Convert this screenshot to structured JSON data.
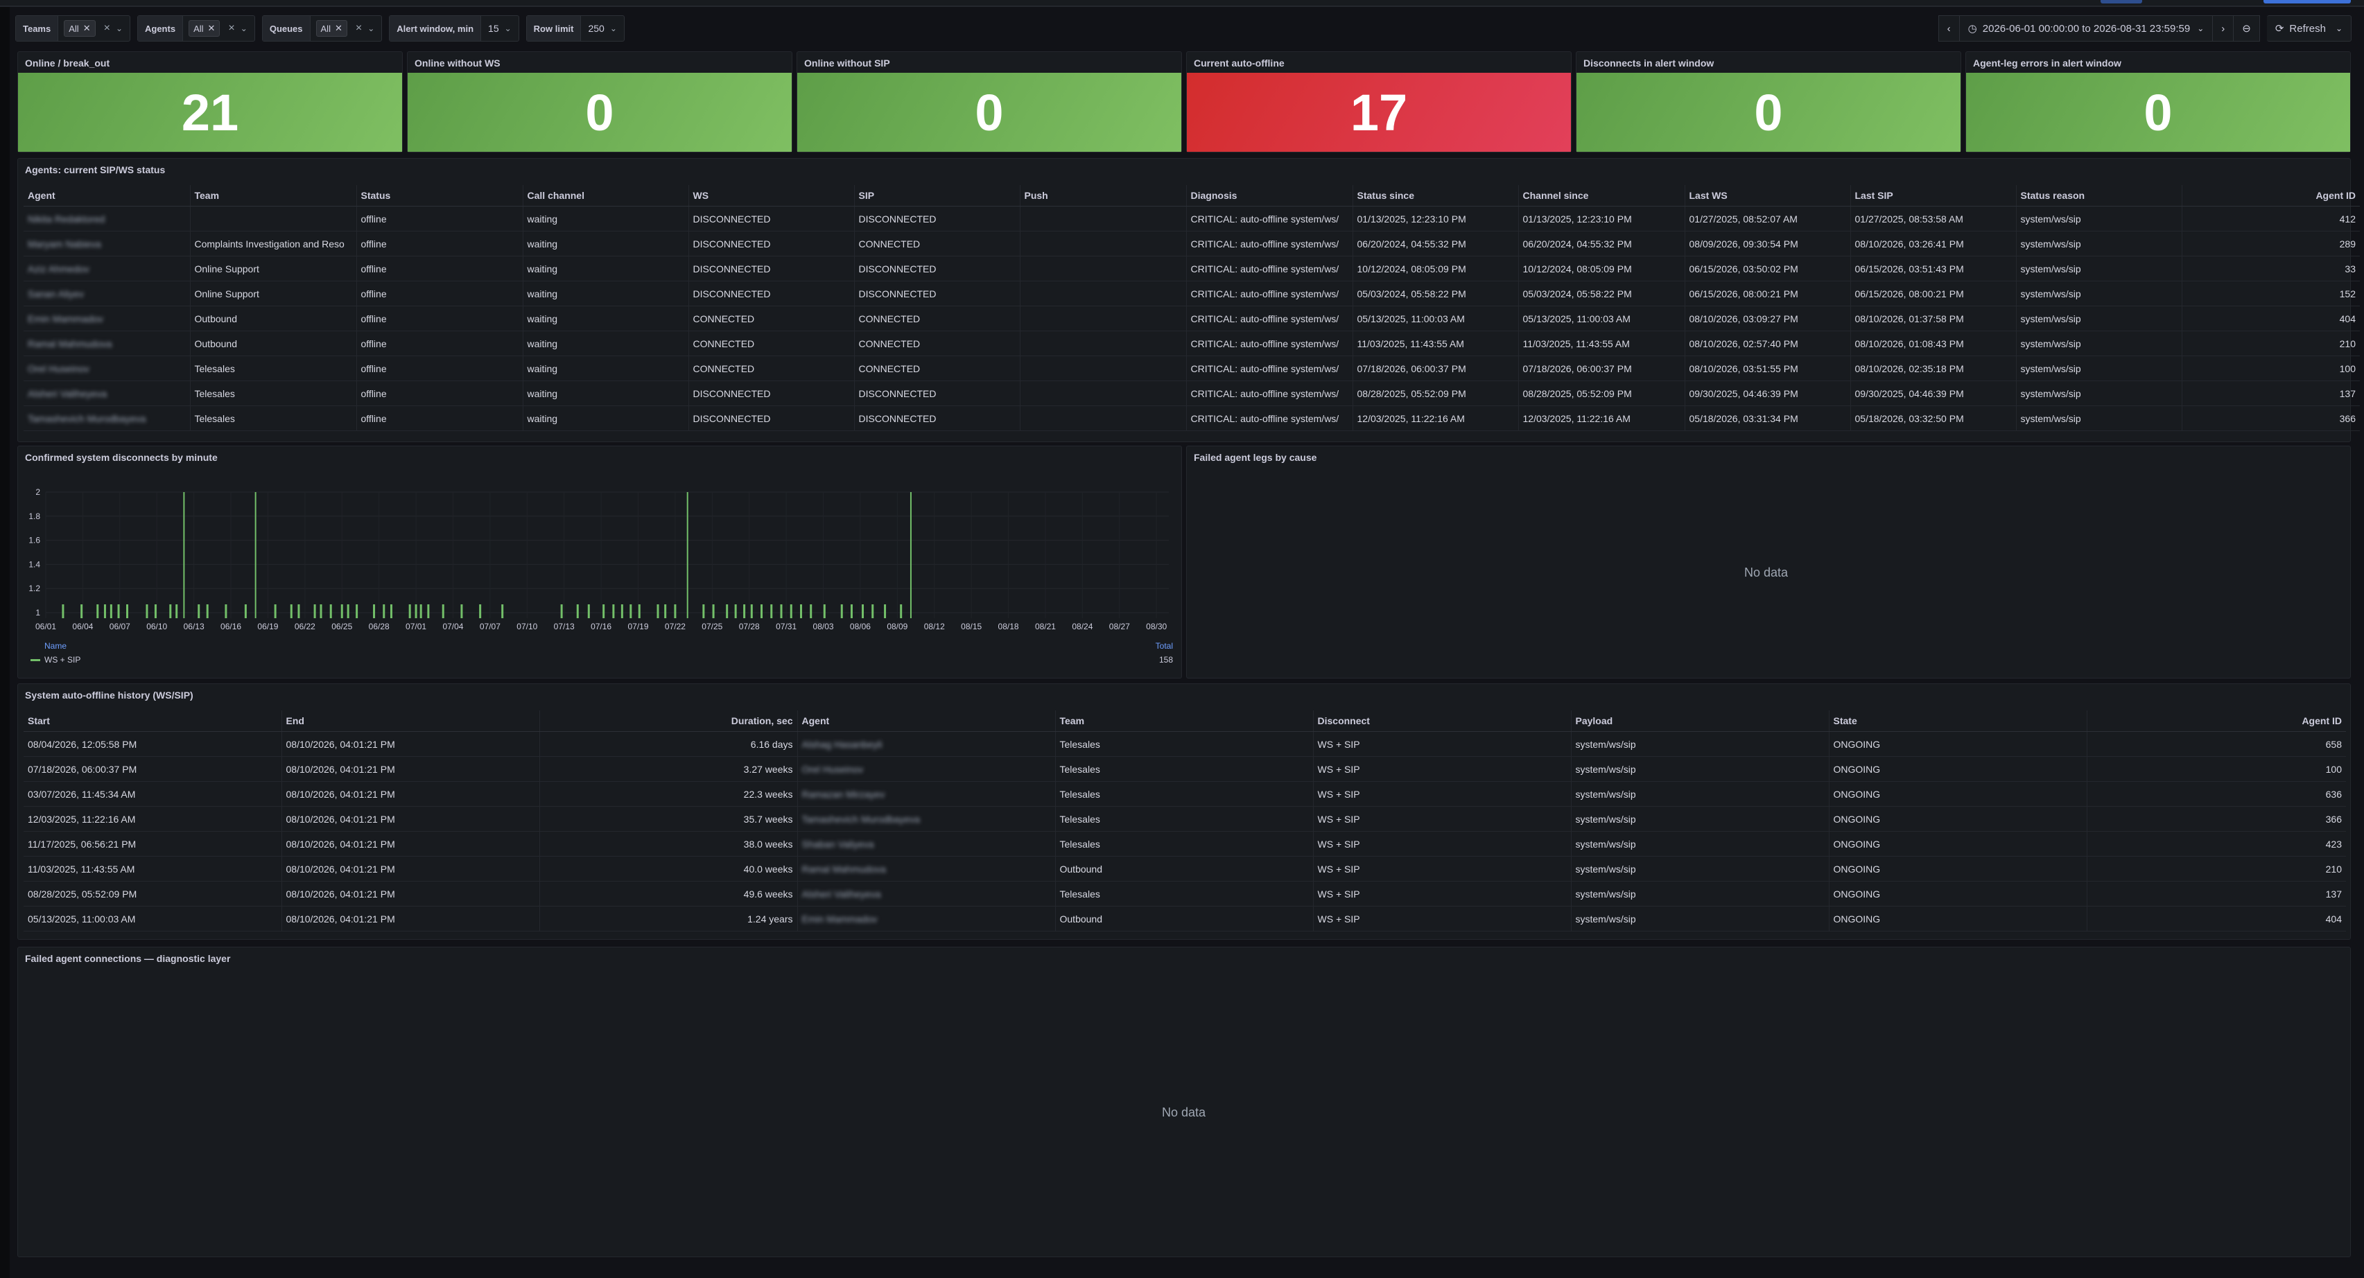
{
  "variables": [
    {
      "label": "Teams",
      "chip": "All"
    },
    {
      "label": "Agents",
      "chip": "All"
    },
    {
      "label": "Queues",
      "chip": "All"
    }
  ],
  "alert_window": {
    "label": "Alert window, min",
    "value": "15"
  },
  "row_limit": {
    "label": "Row limit",
    "value": "250"
  },
  "timepicker": {
    "range": "2026-06-01 00:00:00 to 2026-08-31 23:59:59",
    "refresh": "Refresh"
  },
  "stats": [
    {
      "title": "Online / break_out",
      "value": "21",
      "color": "#6aa84f"
    },
    {
      "title": "Online without WS",
      "value": "0",
      "color": "#6aa84f"
    },
    {
      "title": "Online without SIP",
      "value": "0",
      "color": "#6aa84f"
    },
    {
      "title": "Current auto-offline",
      "value": "17",
      "color": "#d9373f"
    },
    {
      "title": "Disconnects in alert window",
      "value": "0",
      "color": "#6aa84f"
    },
    {
      "title": "Agent-leg errors in alert window",
      "value": "0",
      "color": "#6aa84f"
    }
  ],
  "agents_table": {
    "title": "Agents: current SIP/WS status",
    "headers": [
      "Agent",
      "Team",
      "Status",
      "Call channel",
      "WS",
      "SIP",
      "Push",
      "Diagnosis",
      "Status since",
      "Channel since",
      "Last WS",
      "Last SIP",
      "Status reason",
      "Agent ID"
    ],
    "rows": [
      [
        "Nikita Redaktored",
        "",
        "offline",
        "waiting",
        "DISCONNECTED",
        "DISCONNECTED",
        "",
        "CRITICAL: auto-offline system/ws/",
        "01/13/2025, 12:23:10 PM",
        "01/13/2025, 12:23:10 PM",
        "01/27/2025, 08:52:07 AM",
        "01/27/2025, 08:53:58 AM",
        "system/ws/sip",
        "412"
      ],
      [
        "Maryam Nabieva",
        "Complaints Investigation and Reso",
        "offline",
        "waiting",
        "DISCONNECTED",
        "CONNECTED",
        "",
        "CRITICAL: auto-offline system/ws/",
        "06/20/2024, 04:55:32 PM",
        "06/20/2024, 04:55:32 PM",
        "08/09/2026, 09:30:54 PM",
        "08/10/2026, 03:26:41 PM",
        "system/ws/sip",
        "289"
      ],
      [
        "Aziz Ahmedov",
        "Online Support",
        "offline",
        "waiting",
        "DISCONNECTED",
        "DISCONNECTED",
        "",
        "CRITICAL: auto-offline system/ws/",
        "10/12/2024, 08:05:09 PM",
        "10/12/2024, 08:05:09 PM",
        "06/15/2026, 03:50:02 PM",
        "06/15/2026, 03:51:43 PM",
        "system/ws/sip",
        "33"
      ],
      [
        "Sanan Aliyev",
        "Online Support",
        "offline",
        "waiting",
        "DISCONNECTED",
        "DISCONNECTED",
        "",
        "CRITICAL: auto-offline system/ws/",
        "05/03/2024, 05:58:22 PM",
        "05/03/2024, 05:58:22 PM",
        "06/15/2026, 08:00:21 PM",
        "06/15/2026, 08:00:21 PM",
        "system/ws/sip",
        "152"
      ],
      [
        "Emin Mammadov",
        "Outbound",
        "offline",
        "waiting",
        "CONNECTED",
        "CONNECTED",
        "",
        "CRITICAL: auto-offline system/ws/",
        "05/13/2025, 11:00:03 AM",
        "05/13/2025, 11:00:03 AM",
        "08/10/2026, 03:09:27 PM",
        "08/10/2026, 01:37:58 PM",
        "system/ws/sip",
        "404"
      ],
      [
        "Ramal Mahmudova",
        "Outbound",
        "offline",
        "waiting",
        "CONNECTED",
        "CONNECTED",
        "",
        "CRITICAL: auto-offline system/ws/",
        "11/03/2025, 11:43:55 AM",
        "11/03/2025, 11:43:55 AM",
        "08/10/2026, 02:57:40 PM",
        "08/10/2026, 01:08:43 PM",
        "system/ws/sip",
        "210"
      ],
      [
        "Orel Huseinov",
        "Telesales",
        "offline",
        "waiting",
        "CONNECTED",
        "CONNECTED",
        "",
        "CRITICAL: auto-offline system/ws/",
        "07/18/2026, 06:00:37 PM",
        "07/18/2026, 06:00:37 PM",
        "08/10/2026, 03:51:55 PM",
        "08/10/2026, 02:35:18 PM",
        "system/ws/sip",
        "100"
      ],
      [
        "Alsheri Valiheyeva",
        "Telesales",
        "offline",
        "waiting",
        "DISCONNECTED",
        "DISCONNECTED",
        "",
        "CRITICAL: auto-offline system/ws/",
        "08/28/2025, 05:52:09 PM",
        "08/28/2025, 05:52:09 PM",
        "09/30/2025, 04:46:39 PM",
        "09/30/2025, 04:46:39 PM",
        "system/ws/sip",
        "137"
      ],
      [
        "Tamashevich Murodbayeva",
        "Telesales",
        "offline",
        "waiting",
        "DISCONNECTED",
        "DISCONNECTED",
        "",
        "CRITICAL: auto-offline system/ws/",
        "12/03/2025, 11:22:16 AM",
        "12/03/2025, 11:22:16 AM",
        "05/18/2026, 03:31:34 PM",
        "05/18/2026, 03:32:50 PM",
        "system/ws/sip",
        "366"
      ]
    ]
  },
  "disconnect_chart": {
    "title": "Confirmed system disconnects by minute",
    "legend_header": "Name",
    "legend_total_header": "Total",
    "legend_name": "WS + SIP",
    "legend_total": "158",
    "series_color": "#73bf69"
  },
  "chart_data": {
    "type": "bar",
    "title": "Confirmed system disconnects by minute",
    "xlabel": "",
    "ylabel": "",
    "ylim": [
      1,
      2
    ],
    "y_ticks": [
      "2",
      "1.8",
      "1.6",
      "1.4",
      "1.2",
      "1"
    ],
    "x_ticks": [
      "06/01",
      "06/04",
      "06/07",
      "06/10",
      "06/13",
      "06/16",
      "06/19",
      "06/22",
      "06/25",
      "06/28",
      "07/01",
      "07/04",
      "07/07",
      "07/10",
      "07/13",
      "07/16",
      "07/19",
      "07/22",
      "07/25",
      "07/28",
      "07/31",
      "08/03",
      "08/06",
      "08/09",
      "08/12",
      "08/15",
      "08/18",
      "08/21",
      "08/24",
      "08/27",
      "08/30"
    ],
    "x_range_days": [
      0,
      91
    ],
    "series": [
      {
        "name": "WS + SIP",
        "points": [
          {
            "day": 1.4,
            "v": 1
          },
          {
            "day": 2.9,
            "v": 1
          },
          {
            "day": 4.2,
            "v": 1
          },
          {
            "day": 4.8,
            "v": 1
          },
          {
            "day": 5.3,
            "v": 1
          },
          {
            "day": 5.9,
            "v": 1
          },
          {
            "day": 6.6,
            "v": 1
          },
          {
            "day": 8.2,
            "v": 1
          },
          {
            "day": 8.9,
            "v": 1
          },
          {
            "day": 10.1,
            "v": 1
          },
          {
            "day": 10.6,
            "v": 1
          },
          {
            "day": 11.2,
            "v": 2
          },
          {
            "day": 12.4,
            "v": 1
          },
          {
            "day": 13.1,
            "v": 1
          },
          {
            "day": 14.6,
            "v": 1
          },
          {
            "day": 16.2,
            "v": 1
          },
          {
            "day": 17.0,
            "v": 2
          },
          {
            "day": 18.6,
            "v": 1
          },
          {
            "day": 19.9,
            "v": 1
          },
          {
            "day": 20.5,
            "v": 1
          },
          {
            "day": 21.8,
            "v": 1
          },
          {
            "day": 22.3,
            "v": 1
          },
          {
            "day": 23.1,
            "v": 1
          },
          {
            "day": 24.0,
            "v": 1
          },
          {
            "day": 24.5,
            "v": 1
          },
          {
            "day": 25.2,
            "v": 1
          },
          {
            "day": 26.6,
            "v": 1
          },
          {
            "day": 27.4,
            "v": 1
          },
          {
            "day": 28.0,
            "v": 1
          },
          {
            "day": 29.5,
            "v": 1
          },
          {
            "day": 30.0,
            "v": 1
          },
          {
            "day": 30.4,
            "v": 1
          },
          {
            "day": 31.0,
            "v": 1
          },
          {
            "day": 32.2,
            "v": 1
          },
          {
            "day": 33.7,
            "v": 1
          },
          {
            "day": 35.2,
            "v": 1
          },
          {
            "day": 37.0,
            "v": 1
          },
          {
            "day": 41.8,
            "v": 1
          },
          {
            "day": 43.1,
            "v": 1
          },
          {
            "day": 44.0,
            "v": 1
          },
          {
            "day": 45.2,
            "v": 1
          },
          {
            "day": 46.0,
            "v": 1
          },
          {
            "day": 46.7,
            "v": 1
          },
          {
            "day": 47.4,
            "v": 1
          },
          {
            "day": 48.1,
            "v": 1
          },
          {
            "day": 49.6,
            "v": 1
          },
          {
            "day": 50.2,
            "v": 1
          },
          {
            "day": 51.0,
            "v": 1
          },
          {
            "day": 52.0,
            "v": 2
          },
          {
            "day": 53.3,
            "v": 1
          },
          {
            "day": 54.1,
            "v": 1
          },
          {
            "day": 55.2,
            "v": 1
          },
          {
            "day": 55.9,
            "v": 1
          },
          {
            "day": 56.6,
            "v": 1
          },
          {
            "day": 57.2,
            "v": 1
          },
          {
            "day": 58.0,
            "v": 1
          },
          {
            "day": 58.8,
            "v": 1
          },
          {
            "day": 59.6,
            "v": 1
          },
          {
            "day": 60.4,
            "v": 1
          },
          {
            "day": 61.2,
            "v": 1
          },
          {
            "day": 62.0,
            "v": 1
          },
          {
            "day": 63.1,
            "v": 1
          },
          {
            "day": 64.5,
            "v": 1
          },
          {
            "day": 65.3,
            "v": 1
          },
          {
            "day": 66.2,
            "v": 1
          },
          {
            "day": 67.0,
            "v": 1
          },
          {
            "day": 68.0,
            "v": 1
          },
          {
            "day": 69.3,
            "v": 1
          },
          {
            "day": 70.1,
            "v": 2
          }
        ]
      }
    ]
  },
  "failed_legs_panel": {
    "title": "Failed agent legs by cause",
    "nodata": "No data"
  },
  "history_table": {
    "title": "System auto-offline history (WS/SIP)",
    "headers": [
      "Start",
      "End",
      "Duration, sec",
      "Agent",
      "Team",
      "Disconnect",
      "Payload",
      "State",
      "Agent ID"
    ],
    "rows": [
      [
        "08/04/2026, 12:05:58 PM",
        "08/10/2026, 04:01:21 PM",
        "6.16 days",
        "Alshag Hasanbeyli",
        "Telesales",
        "WS + SIP",
        "system/ws/sip",
        "ONGOING",
        "658"
      ],
      [
        "07/18/2026, 06:00:37 PM",
        "08/10/2026, 04:01:21 PM",
        "3.27 weeks",
        "Orel Huseinov",
        "Telesales",
        "WS + SIP",
        "system/ws/sip",
        "ONGOING",
        "100"
      ],
      [
        "03/07/2026, 11:45:34 AM",
        "08/10/2026, 04:01:21 PM",
        "22.3 weeks",
        "Ramazan Mirzayev",
        "Telesales",
        "WS + SIP",
        "system/ws/sip",
        "ONGOING",
        "636"
      ],
      [
        "12/03/2025, 11:22:16 AM",
        "08/10/2026, 04:01:21 PM",
        "35.7 weeks",
        "Tamashevich Murodbayeva",
        "Telesales",
        "WS + SIP",
        "system/ws/sip",
        "ONGOING",
        "366"
      ],
      [
        "11/17/2025, 06:56:21 PM",
        "08/10/2026, 04:01:21 PM",
        "38.0 weeks",
        "Shaban Valiyeva",
        "Telesales",
        "WS + SIP",
        "system/ws/sip",
        "ONGOING",
        "423"
      ],
      [
        "11/03/2025, 11:43:55 AM",
        "08/10/2026, 04:01:21 PM",
        "40.0 weeks",
        "Ramal Mahmudova",
        "Outbound",
        "WS + SIP",
        "system/ws/sip",
        "ONGOING",
        "210"
      ],
      [
        "08/28/2025, 05:52:09 PM",
        "08/10/2026, 04:01:21 PM",
        "49.6 weeks",
        "Alsheri Valiheyeva",
        "Telesales",
        "WS + SIP",
        "system/ws/sip",
        "ONGOING",
        "137"
      ],
      [
        "05/13/2025, 11:00:03 AM",
        "08/10/2026, 04:01:21 PM",
        "1.24 years",
        "Emin Mammadov",
        "Outbound",
        "WS + SIP",
        "system/ws/sip",
        "ONGOING",
        "404"
      ]
    ]
  },
  "diag_panel": {
    "title": "Failed agent connections — diagnostic layer",
    "nodata": "No data"
  }
}
